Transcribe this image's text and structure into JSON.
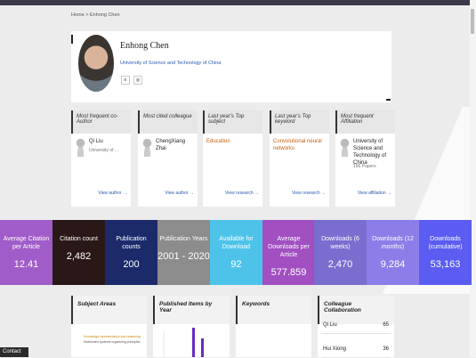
{
  "breadcrumb": {
    "home": "Home",
    "current": "Enhong Chen"
  },
  "profile": {
    "name": "Enhong Chen",
    "affiliation": "University of Science and Technology of China"
  },
  "cards": [
    {
      "title": "Most frequent co-Author",
      "main": "Qi Liu",
      "sub": "University of ...",
      "link": "View author"
    },
    {
      "title": "Most cited colleague",
      "main": "ChengXiang Zhai",
      "link": "View author"
    },
    {
      "title": "Last year's Top subject",
      "main": "Education",
      "link": "View research"
    },
    {
      "title": "Last year's Top keyword",
      "main": "Convolutional neural networks",
      "link": "View research"
    },
    {
      "title": "Most frequent Affiliation",
      "main": "University of Science and Technology of China",
      "sub": "166 Papers",
      "link": "View affiliation"
    }
  ],
  "stats": [
    {
      "label": "Average Citation per Article",
      "value": "12.41"
    },
    {
      "label": "Citation count",
      "value": "2,482"
    },
    {
      "label": "Publication counts",
      "value": "200"
    },
    {
      "label": "Publication Years",
      "value": "2001 - 2020"
    },
    {
      "label": "Available for Download",
      "value": "92"
    },
    {
      "label": "Average Downloads per Article",
      "value": "577.859"
    },
    {
      "label": "Downloads (6 weeks)",
      "value": "2,470"
    },
    {
      "label": "Downloads (12 months)",
      "value": "9,284"
    },
    {
      "label": "Downloads (cumulative)",
      "value": "53,163"
    }
  ],
  "sections": {
    "subject_areas": {
      "title": "Subject Areas",
      "items": [
        "Knowledge representation and reasoning",
        "Distributed systems organizing principles"
      ]
    },
    "published": {
      "title": "Published Items by Year"
    },
    "keywords": {
      "title": "Keywords"
    },
    "collab": {
      "title": "Colleague Collaboration",
      "rows": [
        [
          "Qi Liu",
          "65"
        ],
        [
          "Hui Xiong",
          "36"
        ]
      ]
    }
  },
  "contact": "Contact"
}
